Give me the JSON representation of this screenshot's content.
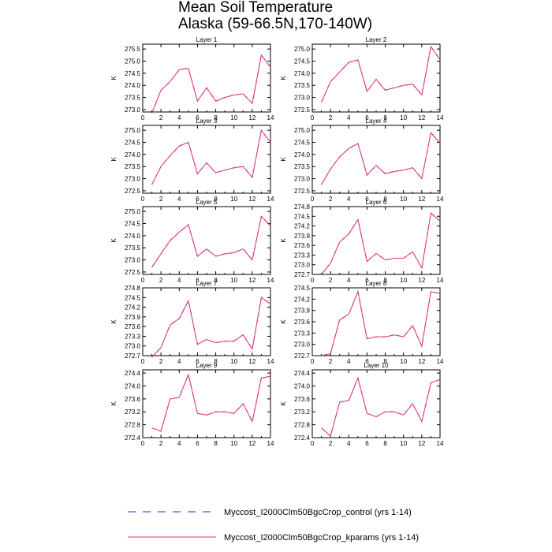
{
  "title": {
    "line1": "Mean Soil Temperature",
    "line2": "Alaska (59-66.5N,170-140W)"
  },
  "colors": {
    "control": "#3d1fcf",
    "kparams": "#e8327a",
    "axis": "#000000"
  },
  "legend": {
    "control_label": "Myccost_I2000Clm50BgcCrop_control (yrs 1-14)",
    "kparams_label": "Myccost_I2000Clm50BgcCrop_kparams (yrs 1-14)"
  },
  "chart_data": [
    {
      "type": "line",
      "title": "Layer 1",
      "ylabel": "K",
      "x": [
        1,
        2,
        3,
        4,
        5,
        6,
        7,
        8,
        9,
        10,
        11,
        12,
        13,
        14
      ],
      "xlim": [
        0,
        14
      ],
      "xticks": [
        0,
        2,
        4,
        6,
        8,
        10,
        12,
        14
      ],
      "ylim": [
        272.9,
        275.7
      ],
      "yticks": [
        273.0,
        273.5,
        274.0,
        274.5,
        275.0,
        275.5
      ],
      "ytick_labels": [
        "273.0",
        "273.5",
        "274.0",
        "274.5",
        "275.0",
        "275.5"
      ],
      "series": [
        {
          "name": "Myccost_I2000Clm50BgcCrop_control (yrs 1-14)",
          "values": [
            272.85,
            273.8,
            274.15,
            274.65,
            274.7,
            273.35,
            273.9,
            273.35,
            273.5,
            273.6,
            273.65,
            273.25,
            275.25,
            274.75
          ]
        },
        {
          "name": "Myccost_I2000Clm50BgcCrop_kparams (yrs 1-14)",
          "values": [
            272.85,
            273.8,
            274.15,
            274.65,
            274.7,
            273.35,
            273.9,
            273.35,
            273.5,
            273.6,
            273.65,
            273.25,
            275.25,
            274.75
          ]
        }
      ]
    },
    {
      "type": "line",
      "title": "Layer 2",
      "ylabel": "K",
      "x": [
        1,
        2,
        3,
        4,
        5,
        6,
        7,
        8,
        9,
        10,
        11,
        12,
        13,
        14
      ],
      "xlim": [
        0,
        14
      ],
      "xticks": [
        0,
        2,
        4,
        6,
        8,
        10,
        12,
        14
      ],
      "ylim": [
        272.4,
        275.2
      ],
      "yticks": [
        272.5,
        273.0,
        273.5,
        274.0,
        274.5,
        275.0
      ],
      "ytick_labels": [
        "272.5",
        "273.0",
        "273.5",
        "274.0",
        "274.5",
        "275.0"
      ],
      "series": [
        {
          "name": "Myccost_I2000Clm50BgcCrop_control (yrs 1-14)",
          "values": [
            272.8,
            273.65,
            274.05,
            274.45,
            274.55,
            273.25,
            273.75,
            273.3,
            273.4,
            273.5,
            273.55,
            273.1,
            275.1,
            274.55
          ]
        },
        {
          "name": "Myccost_I2000Clm50BgcCrop_kparams (yrs 1-14)",
          "values": [
            272.8,
            273.65,
            274.05,
            274.45,
            274.55,
            273.25,
            273.75,
            273.3,
            273.4,
            273.5,
            273.55,
            273.1,
            275.1,
            274.55
          ]
        }
      ]
    },
    {
      "type": "line",
      "title": "Layer 3",
      "ylabel": "K",
      "x": [
        1,
        2,
        3,
        4,
        5,
        6,
        7,
        8,
        9,
        10,
        11,
        12,
        13,
        14
      ],
      "xlim": [
        0,
        14
      ],
      "xticks": [
        0,
        2,
        4,
        6,
        8,
        10,
        12,
        14
      ],
      "ylim": [
        272.4,
        275.2
      ],
      "yticks": [
        272.5,
        273.0,
        273.5,
        274.0,
        274.5,
        275.0
      ],
      "ytick_labels": [
        "272.5",
        "273.0",
        "273.5",
        "274.0",
        "274.5",
        "275.0"
      ],
      "series": [
        {
          "name": "Myccost_I2000Clm50BgcCrop_control (yrs 1-14)",
          "values": [
            272.75,
            273.5,
            273.95,
            274.35,
            274.5,
            273.2,
            273.65,
            273.25,
            273.35,
            273.45,
            273.5,
            273.05,
            275.0,
            274.5
          ]
        },
        {
          "name": "Myccost_I2000Clm50BgcCrop_kparams (yrs 1-14)",
          "values": [
            272.75,
            273.5,
            273.95,
            274.35,
            274.5,
            273.2,
            273.65,
            273.25,
            273.35,
            273.45,
            273.5,
            273.05,
            275.0,
            274.5
          ]
        }
      ]
    },
    {
      "type": "line",
      "title": "Layer 4",
      "ylabel": "K",
      "x": [
        1,
        2,
        3,
        4,
        5,
        6,
        7,
        8,
        9,
        10,
        11,
        12,
        13,
        14
      ],
      "xlim": [
        0,
        14
      ],
      "xticks": [
        0,
        2,
        4,
        6,
        8,
        10,
        12,
        14
      ],
      "ylim": [
        272.4,
        275.2
      ],
      "yticks": [
        272.5,
        273.0,
        273.5,
        274.0,
        274.5,
        275.0
      ],
      "ytick_labels": [
        "272.5",
        "273.0",
        "273.5",
        "274.0",
        "274.5",
        "275.0"
      ],
      "series": [
        {
          "name": "Myccost_I2000Clm50BgcCrop_control (yrs 1-14)",
          "values": [
            272.75,
            273.4,
            273.9,
            274.25,
            274.45,
            273.15,
            273.55,
            273.2,
            273.3,
            273.35,
            273.45,
            273.0,
            274.9,
            274.45
          ]
        },
        {
          "name": "Myccost_I2000Clm50BgcCrop_kparams (yrs 1-14)",
          "values": [
            272.75,
            273.4,
            273.9,
            274.25,
            274.45,
            273.15,
            273.55,
            273.2,
            273.3,
            273.35,
            273.45,
            273.0,
            274.9,
            274.45
          ]
        }
      ]
    },
    {
      "type": "line",
      "title": "Layer 5",
      "ylabel": "K",
      "x": [
        1,
        2,
        3,
        4,
        5,
        6,
        7,
        8,
        9,
        10,
        11,
        12,
        13,
        14
      ],
      "xlim": [
        0,
        14
      ],
      "xticks": [
        0,
        2,
        4,
        6,
        8,
        10,
        12,
        14
      ],
      "ylim": [
        272.4,
        275.2
      ],
      "yticks": [
        272.5,
        273.0,
        273.5,
        274.0,
        274.5,
        275.0
      ],
      "ytick_labels": [
        "272.5",
        "273.0",
        "273.5",
        "274.0",
        "274.5",
        "275.0"
      ],
      "series": [
        {
          "name": "Myccost_I2000Clm50BgcCrop_control (yrs 1-14)",
          "values": [
            272.7,
            273.25,
            273.8,
            274.15,
            274.45,
            273.15,
            273.45,
            273.15,
            273.25,
            273.3,
            273.45,
            273.0,
            274.8,
            274.4
          ]
        },
        {
          "name": "Myccost_I2000Clm50BgcCrop_kparams (yrs 1-14)",
          "values": [
            272.7,
            273.25,
            273.8,
            274.15,
            274.45,
            273.15,
            273.45,
            273.15,
            273.25,
            273.3,
            273.45,
            273.0,
            274.8,
            274.4
          ]
        }
      ]
    },
    {
      "type": "line",
      "title": "Layer 6",
      "ylabel": "K",
      "x": [
        1,
        2,
        3,
        4,
        5,
        6,
        7,
        8,
        9,
        10,
        11,
        12,
        13,
        14
      ],
      "xlim": [
        0,
        14
      ],
      "xticks": [
        0,
        2,
        4,
        6,
        8,
        10,
        12,
        14
      ],
      "ylim": [
        272.7,
        274.8
      ],
      "yticks": [
        272.7,
        273.0,
        273.3,
        273.6,
        273.9,
        274.2,
        274.5,
        274.8
      ],
      "ytick_labels": [
        "272.7",
        "273.0",
        "273.3",
        "273.6",
        "273.9",
        "274.2",
        "274.5",
        "274.8"
      ],
      "series": [
        {
          "name": "Myccost_I2000Clm50BgcCrop_control (yrs 1-14)",
          "values": [
            272.7,
            273.05,
            273.7,
            273.95,
            274.4,
            273.1,
            273.35,
            273.15,
            273.2,
            273.2,
            273.4,
            272.9,
            274.6,
            274.35
          ]
        },
        {
          "name": "Myccost_I2000Clm50BgcCrop_kparams (yrs 1-14)",
          "values": [
            272.7,
            273.05,
            273.7,
            273.95,
            274.4,
            273.1,
            273.35,
            273.15,
            273.2,
            273.2,
            273.4,
            272.9,
            274.6,
            274.35
          ]
        }
      ]
    },
    {
      "type": "line",
      "title": "Layer 7",
      "ylabel": "K",
      "x": [
        1,
        2,
        3,
        4,
        5,
        6,
        7,
        8,
        9,
        10,
        11,
        12,
        13,
        14
      ],
      "xlim": [
        0,
        14
      ],
      "xticks": [
        0,
        2,
        4,
        6,
        8,
        10,
        12,
        14
      ],
      "ylim": [
        272.7,
        274.8
      ],
      "yticks": [
        272.7,
        273.0,
        273.3,
        273.6,
        273.9,
        274.2,
        274.5,
        274.8
      ],
      "ytick_labels": [
        "272.7",
        "273.0",
        "273.3",
        "273.6",
        "273.9",
        "274.2",
        "274.5",
        "274.8"
      ],
      "series": [
        {
          "name": "Myccost_I2000Clm50BgcCrop_control (yrs 1-14)",
          "values": [
            272.65,
            272.95,
            273.65,
            273.85,
            274.4,
            273.05,
            273.2,
            273.1,
            273.15,
            273.15,
            273.35,
            272.9,
            274.5,
            274.3
          ]
        },
        {
          "name": "Myccost_I2000Clm50BgcCrop_kparams (yrs 1-14)",
          "values": [
            272.65,
            272.95,
            273.65,
            273.85,
            274.4,
            273.05,
            273.2,
            273.1,
            273.15,
            273.15,
            273.35,
            272.9,
            274.5,
            274.3
          ]
        }
      ]
    },
    {
      "type": "line",
      "title": "Layer 8",
      "ylabel": "K",
      "x": [
        1,
        2,
        3,
        4,
        5,
        6,
        7,
        8,
        9,
        10,
        11,
        12,
        13,
        14
      ],
      "xlim": [
        0,
        14
      ],
      "xticks": [
        0,
        2,
        4,
        6,
        8,
        10,
        12,
        14
      ],
      "ylim": [
        272.7,
        274.5
      ],
      "yticks": [
        272.7,
        273.0,
        273.3,
        273.6,
        273.9,
        274.2,
        274.5
      ],
      "ytick_labels": [
        "272.7",
        "273.0",
        "273.3",
        "273.6",
        "273.9",
        "274.2",
        "274.5"
      ],
      "series": [
        {
          "name": "Myccost_I2000Clm50BgcCrop_control (yrs 1-14)",
          "values": [
            272.7,
            272.75,
            273.65,
            273.8,
            274.4,
            273.15,
            273.2,
            273.2,
            273.25,
            273.2,
            273.5,
            272.95,
            274.4,
            274.35
          ]
        },
        {
          "name": "Myccost_I2000Clm50BgcCrop_kparams (yrs 1-14)",
          "values": [
            272.7,
            272.75,
            273.65,
            273.8,
            274.4,
            273.15,
            273.2,
            273.2,
            273.25,
            273.2,
            273.5,
            272.95,
            274.4,
            274.35
          ]
        }
      ]
    },
    {
      "type": "line",
      "title": "Layer 9",
      "ylabel": "K",
      "x": [
        1,
        2,
        3,
        4,
        5,
        6,
        7,
        8,
        9,
        10,
        11,
        12,
        13,
        14
      ],
      "xlim": [
        0,
        14
      ],
      "xticks": [
        0,
        2,
        4,
        6,
        8,
        10,
        12,
        14
      ],
      "ylim": [
        272.4,
        274.5
      ],
      "yticks": [
        272.4,
        272.8,
        273.2,
        273.6,
        274.0,
        274.4
      ],
      "ytick_labels": [
        "272.4",
        "272.8",
        "273.2",
        "273.6",
        "274.0",
        "274.4"
      ],
      "series": [
        {
          "name": "Myccost_I2000Clm50BgcCrop_control (yrs 1-14)",
          "values": [
            272.7,
            272.6,
            273.6,
            273.65,
            274.35,
            273.15,
            273.1,
            273.2,
            273.2,
            273.15,
            273.45,
            272.9,
            274.25,
            274.3
          ]
        },
        {
          "name": "Myccost_I2000Clm50BgcCrop_kparams (yrs 1-14)",
          "values": [
            272.7,
            272.6,
            273.6,
            273.65,
            274.35,
            273.15,
            273.1,
            273.2,
            273.2,
            273.15,
            273.45,
            272.9,
            274.25,
            274.3
          ]
        }
      ]
    },
    {
      "type": "line",
      "title": "Layer 10",
      "ylabel": "K",
      "x": [
        1,
        2,
        3,
        4,
        5,
        6,
        7,
        8,
        9,
        10,
        11,
        12,
        13,
        14
      ],
      "xlim": [
        0,
        14
      ],
      "xticks": [
        0,
        2,
        4,
        6,
        8,
        10,
        12,
        14
      ],
      "ylim": [
        272.4,
        274.5
      ],
      "yticks": [
        272.4,
        272.8,
        273.2,
        273.6,
        274.0,
        274.4
      ],
      "ytick_labels": [
        "272.4",
        "272.8",
        "273.2",
        "273.6",
        "274.0",
        "274.4"
      ],
      "series": [
        {
          "name": "Myccost_I2000Clm50BgcCrop_control (yrs 1-14)",
          "values": [
            272.7,
            272.45,
            273.5,
            273.55,
            274.25,
            273.15,
            273.05,
            273.2,
            273.2,
            273.1,
            273.45,
            272.9,
            274.1,
            274.2
          ]
        },
        {
          "name": "Myccost_I2000Clm50BgcCrop_kparams (yrs 1-14)",
          "values": [
            272.7,
            272.45,
            273.5,
            273.55,
            274.25,
            273.15,
            273.05,
            273.2,
            273.2,
            273.1,
            273.45,
            272.9,
            274.1,
            274.2
          ]
        }
      ]
    }
  ]
}
